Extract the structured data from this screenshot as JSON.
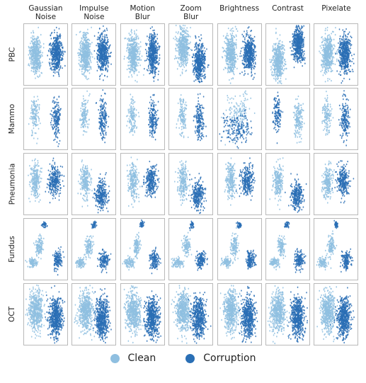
{
  "chart_data": {
    "type": "scatter",
    "columns": [
      "Gaussian\nNoise",
      "Impulse\nNoise",
      "Motion\nBlur",
      "Zoom\nBlur",
      "Brightness",
      "Contrast",
      "Pixelate"
    ],
    "rows": [
      "PBC",
      "Mammo",
      "Pneumonia",
      "Fundus",
      "OCT"
    ],
    "series": [
      {
        "name": "Clean",
        "color": "#8fbfe0"
      },
      {
        "name": "Corruption",
        "color": "#2a6fb5"
      }
    ],
    "axes_visible": false,
    "legend_position": "bottom-center"
  }
}
